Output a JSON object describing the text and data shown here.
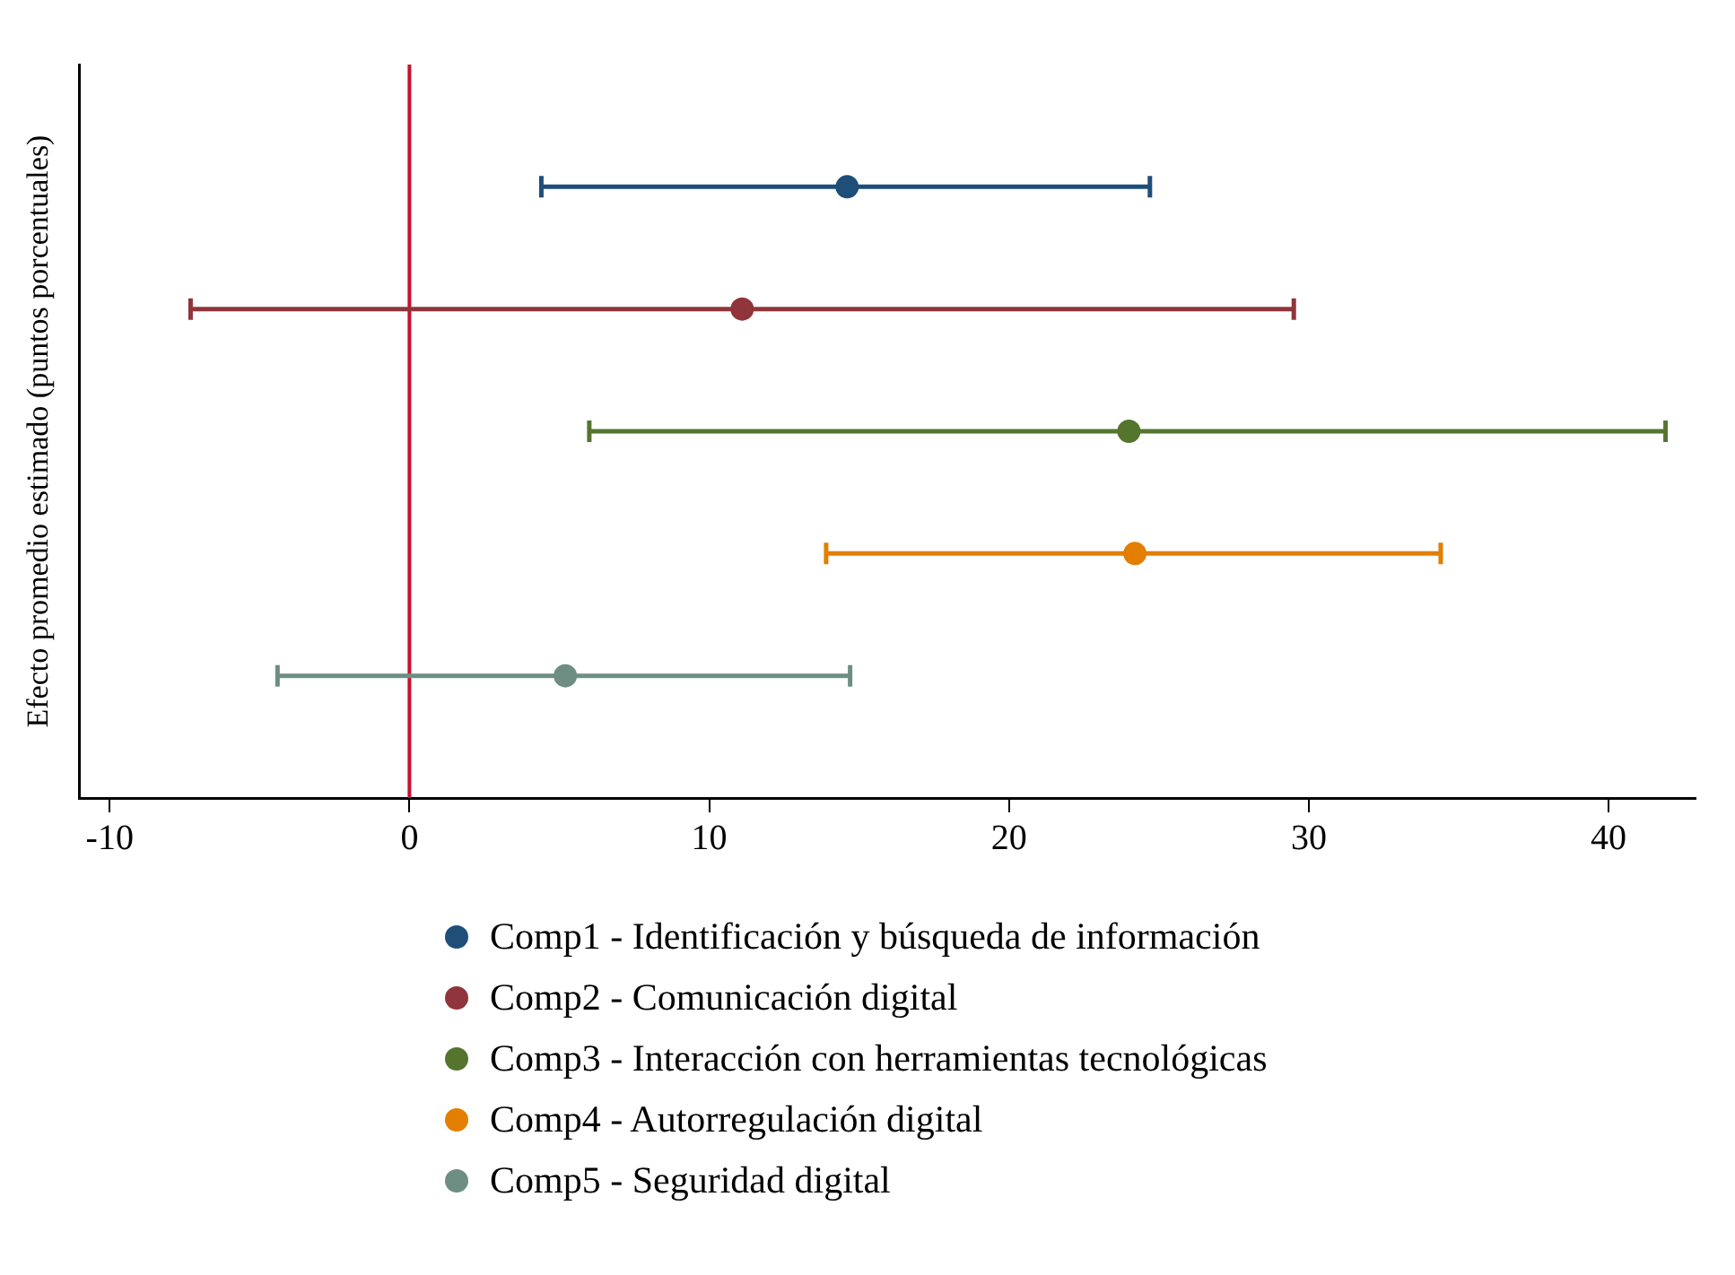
{
  "chart_data": {
    "type": "scatter",
    "orientation": "horizontal",
    "ylabel": "Efecto promedio estimado (puntos porcentuales)",
    "categories": [
      null,
      null,
      null,
      null,
      null
    ],
    "series": [
      {
        "name": "Comp1 - Identificación y búsqueda de información",
        "color": "#1f4e79",
        "values": [
          14.6,
          null,
          null,
          null,
          null
        ],
        "errors": [
          [
            4.4,
            24.7
          ],
          null,
          null,
          null,
          null
        ]
      },
      {
        "name": "Comp2 - Comunicación digital",
        "color": "#90353b",
        "values": [
          null,
          11.1,
          null,
          null,
          null
        ],
        "errors": [
          null,
          [
            -7.3,
            29.5
          ],
          null,
          null,
          null
        ]
      },
      {
        "name": "Comp3 - Interacción con herramientas tecnológicas",
        "color": "#55752f",
        "values": [
          null,
          null,
          24.0,
          null,
          null
        ],
        "errors": [
          null,
          null,
          [
            6.0,
            41.9
          ],
          null,
          null
        ]
      },
      {
        "name": "Comp4 - Autorregulación digital",
        "color": "#e37e00",
        "values": [
          null,
          null,
          null,
          24.2,
          null
        ],
        "errors": [
          null,
          null,
          null,
          [
            13.9,
            34.4
          ],
          null
        ]
      },
      {
        "name": "Comp5 - Seguridad digital",
        "color": "#6e8e84",
        "values": [
          null,
          null,
          null,
          null,
          5.2
        ],
        "errors": [
          null,
          null,
          null,
          null,
          [
            -4.4,
            14.7
          ]
        ]
      }
    ],
    "xlim": [
      -11,
      42.9
    ],
    "xticks": [
      -10,
      0,
      10,
      20,
      30,
      40
    ],
    "ref_lines": [
      {
        "axis": "x",
        "value": 0,
        "color": "#c8102e"
      }
    ],
    "marker": "circle",
    "legend": "bottom",
    "tick_labels": "x"
  }
}
